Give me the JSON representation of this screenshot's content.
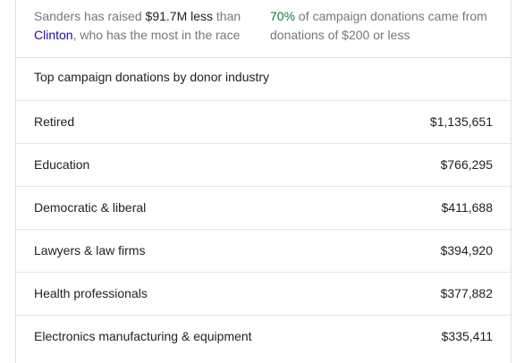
{
  "stats": [
    {
      "lead": "Sanders has raised",
      "highlight": "$91.7M less",
      "middle": "than",
      "link": "Clinton",
      "tail": ", who has the most in the race"
    },
    {
      "highlight": "70%",
      "tail": "of campaign donations came from donations of $200 or less"
    }
  ],
  "table": {
    "title": "Top campaign donations by donor industry",
    "rows": [
      [
        "Retired",
        "$1,135,651"
      ],
      [
        "Education",
        "$766,295"
      ],
      [
        "Democratic & liberal",
        "$411,688"
      ],
      [
        "Lawyers & law firms",
        "$394,920"
      ],
      [
        "Health professionals",
        "$377,882"
      ],
      [
        "Electronics manufacturing & equipment",
        "$335,411"
      ]
    ]
  }
}
